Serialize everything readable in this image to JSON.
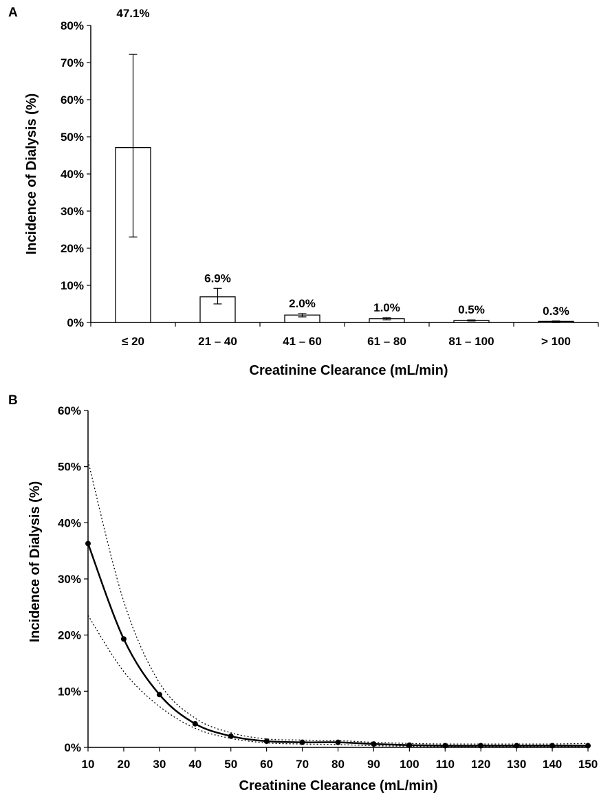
{
  "chart_data": [
    {
      "type": "bar",
      "panel_label": "A",
      "categories": [
        "≤ 20",
        "21 – 40",
        "41 – 60",
        "61 – 80",
        "81 – 100",
        "> 100"
      ],
      "series": [
        {
          "values": [
            47.1,
            6.9,
            2.0,
            1.0,
            0.5,
            0.3
          ],
          "error_low": [
            23.0,
            5.0,
            1.5,
            0.7,
            0.4,
            0.2
          ],
          "error_high": [
            72.2,
            9.2,
            2.4,
            1.3,
            0.7,
            0.4
          ],
          "data_labels": [
            "47.1%",
            "6.9%",
            "2.0%",
            "1.0%",
            "0.5%",
            "0.3%"
          ]
        }
      ],
      "xlabel": "Creatinine Clearance (mL/min)",
      "ylabel": "Incidence of Dialysis (%)",
      "ylim": [
        0,
        80
      ],
      "yticks": [
        "0%",
        "10%",
        "20%",
        "30%",
        "40%",
        "50%",
        "60%",
        "70%",
        "80%"
      ],
      "grid": false
    },
    {
      "type": "line",
      "panel_label": "B",
      "x": [
        10,
        20,
        30,
        40,
        50,
        60,
        70,
        80,
        90,
        100,
        110,
        120,
        130,
        140,
        150
      ],
      "series": [
        {
          "style": "solid-markers",
          "values": [
            36.3,
            19.3,
            9.4,
            4.2,
            2.0,
            1.1,
            0.9,
            0.9,
            0.6,
            0.4,
            0.3,
            0.3,
            0.3,
            0.3,
            0.3
          ]
        },
        {
          "style": "dotted",
          "values": [
            51.0,
            26.0,
            11.5,
            5.2,
            2.6,
            1.5,
            1.3,
            1.2,
            0.9,
            0.7,
            0.6,
            0.6,
            0.6,
            0.6,
            0.7
          ]
        },
        {
          "style": "dotted",
          "values": [
            23.5,
            13.5,
            7.3,
            3.4,
            1.6,
            0.8,
            0.6,
            0.5,
            0.3,
            0.2,
            0.1,
            0.1,
            0.1,
            0.1,
            0.1
          ]
        }
      ],
      "xlabel": "Creatinine Clearance (mL/min)",
      "ylabel": "Incidence of Dialysis (%)",
      "xlim": [
        10,
        150
      ],
      "ylim": [
        0,
        60
      ],
      "xticks": [
        "10",
        "20",
        "30",
        "40",
        "50",
        "60",
        "70",
        "80",
        "90",
        "100",
        "110",
        "120",
        "130",
        "140",
        "150"
      ],
      "yticks": [
        "0%",
        "10%",
        "20%",
        "30%",
        "40%",
        "50%",
        "60%"
      ],
      "grid": false
    }
  ]
}
